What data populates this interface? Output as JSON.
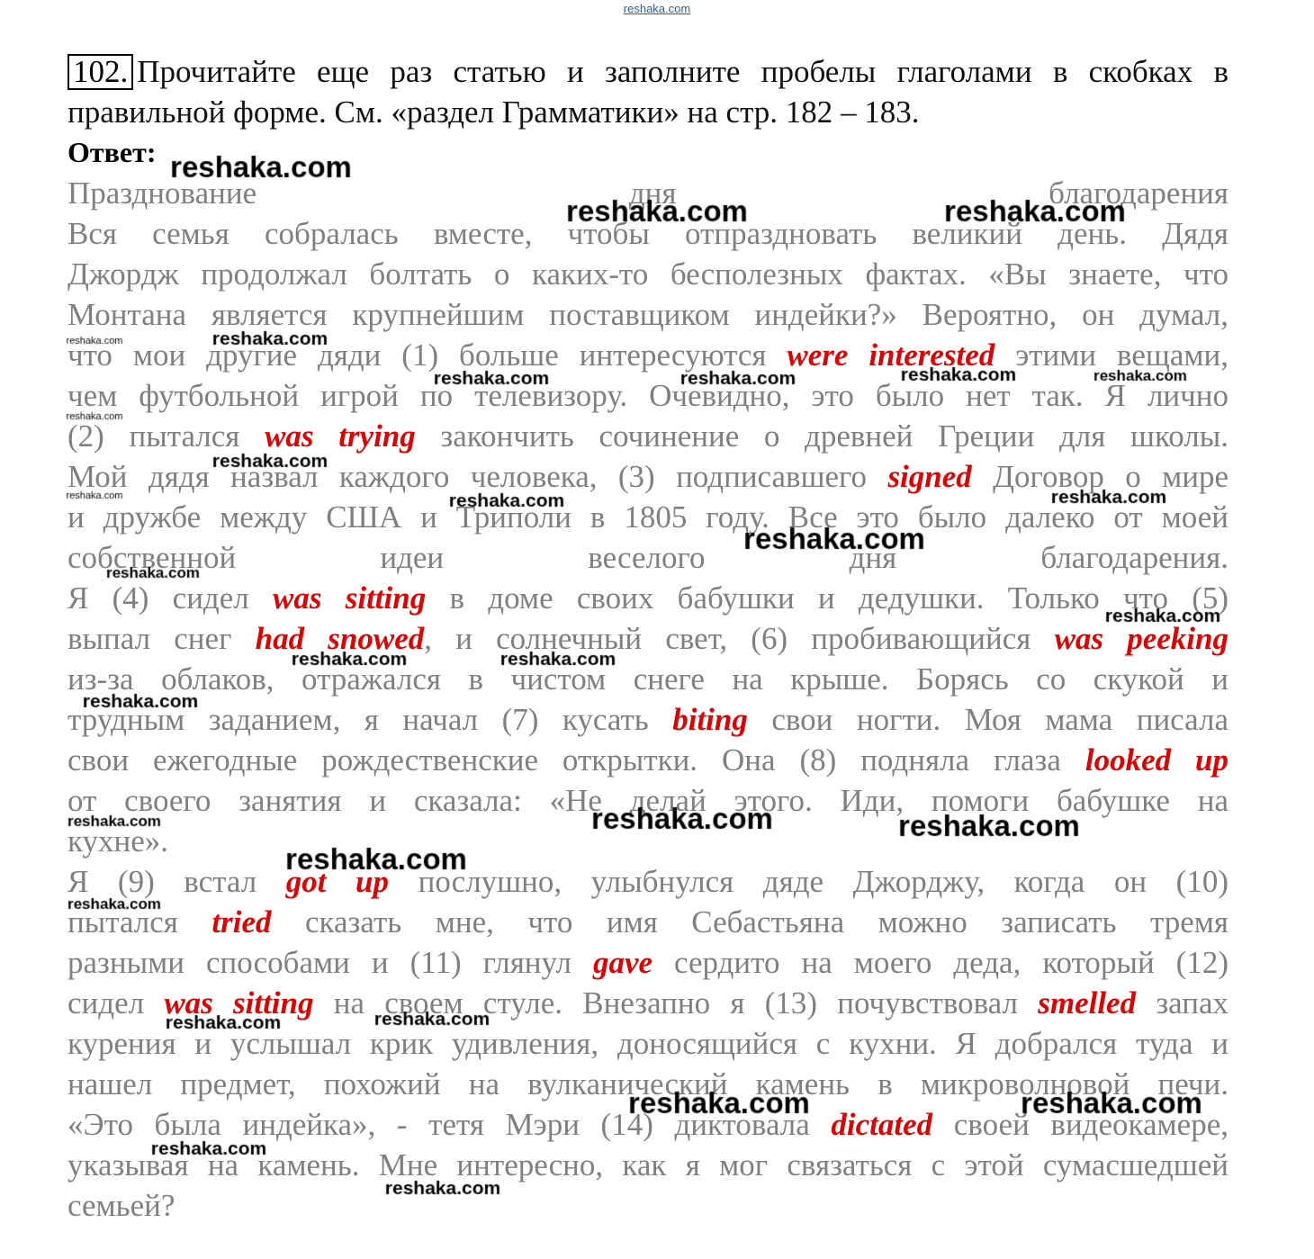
{
  "site_header": "reshaka.com",
  "task": {
    "number": "102.",
    "instruction_lines": [
      "Прочитайте еще раз статью и заполните пробелы глаголами в скобках в",
      "правильной форме. См. «раздел Грамматики» на стр. 182 – 183."
    ],
    "answer_label": "Ответ:"
  },
  "text_lines": [
    [
      {
        "t": "Празднование дня благодарения"
      }
    ],
    [
      {
        "t": "Вся семья собралась вместе, чтобы отпраздновать великий день. Дядя"
      }
    ],
    [
      {
        "t": "Джордж продолжал болтать о каких-то бесполезных фактах. «Вы знаете, что"
      }
    ],
    [
      {
        "t": "Монтана является крупнейшим поставщиком индейки?» Вероятно, он думал,"
      }
    ],
    [
      {
        "t": "что мои другие дяди (1) больше интересуются "
      },
      {
        "a": "were interested"
      },
      {
        "t": " этими вещами,"
      }
    ],
    [
      {
        "t": "чем футбольной игрой по телевизору. Очевидно, это было нет так. Я лично"
      }
    ],
    [
      {
        "t": "(2) пытался "
      },
      {
        "a": "was trying"
      },
      {
        "t": " закончить сочинение о древней Греции для школы."
      }
    ],
    [
      {
        "t": "Мой дядя назвал каждого человека, (3) подписавшего "
      },
      {
        "a": "signed"
      },
      {
        "t": " Договор о мире"
      }
    ],
    [
      {
        "t": "и дружбе между США и Триполи в 1805 году. Все это было далеко от моей"
      }
    ],
    [
      {
        "t": "собственной идеи веселого дня благодарения."
      }
    ],
    [
      {
        "t": "Я (4) сидел "
      },
      {
        "a": "was sitting"
      },
      {
        "t": " в доме своих бабушки и дедушки. Только что (5)"
      }
    ],
    [
      {
        "t": "выпал снег "
      },
      {
        "a": "had snowed"
      },
      {
        "t": ", и солнечный свет, (6) пробивающийся "
      },
      {
        "a": "was peeking"
      }
    ],
    [
      {
        "t": "из-за облаков, отражался в чистом снеге на крыше. Борясь со скукой и"
      }
    ],
    [
      {
        "t": "трудным заданием, я начал (7) кусать "
      },
      {
        "a": "biting"
      },
      {
        "t": " свои ногти. Моя мама писала"
      }
    ],
    [
      {
        "t": "свои ежегодные рождественские открытки. Она (8) подняла глаза "
      },
      {
        "a": "looked up"
      }
    ],
    [
      {
        "t": "от своего занятия и сказала: «Не делай этого. Иди, помоги бабушке на"
      }
    ],
    [
      {
        "t": "кухне»."
      }
    ],
    [
      {
        "t": "Я (9) встал "
      },
      {
        "a": "got up"
      },
      {
        "t": " послушно, улыбнулся дяде Джорджу, когда он (10)"
      }
    ],
    [
      {
        "t": "пытался "
      },
      {
        "a": "tried"
      },
      {
        "t": " сказать мне, что имя Себастьяна можно записать тремя"
      }
    ],
    [
      {
        "t": "разными способами и (11) глянул "
      },
      {
        "a": "gave"
      },
      {
        "t": " сердито на моего деда, который (12)"
      }
    ],
    [
      {
        "t": "сидел "
      },
      {
        "a": "was sitting"
      },
      {
        "t": " на своем стуле. Внезапно я (13) почувствовал "
      },
      {
        "a": "smelled"
      },
      {
        "t": " запах"
      }
    ],
    [
      {
        "t": "курения и услышал крик удивления, доносящийся с кухни. Я добрался туда и"
      }
    ],
    [
      {
        "t": "нашел предмет, похожий на вулканический камень в микроволновой печи."
      }
    ],
    [
      {
        "t": "«Это была индейка», - тетя Мэри (14) диктовала "
      },
      {
        "a": "dictated"
      },
      {
        "t": " своей видеокамере,"
      }
    ],
    [
      {
        "t": "указывая на камень. Мне интересно, как я мог связаться с этой сумасшедшей"
      }
    ],
    [
      {
        "t": "семьей?"
      }
    ]
  ],
  "watermark_text": "reshaka.com",
  "colors": {
    "answer": "#e00000",
    "body_text": "#808080",
    "watermark": "#000000"
  }
}
